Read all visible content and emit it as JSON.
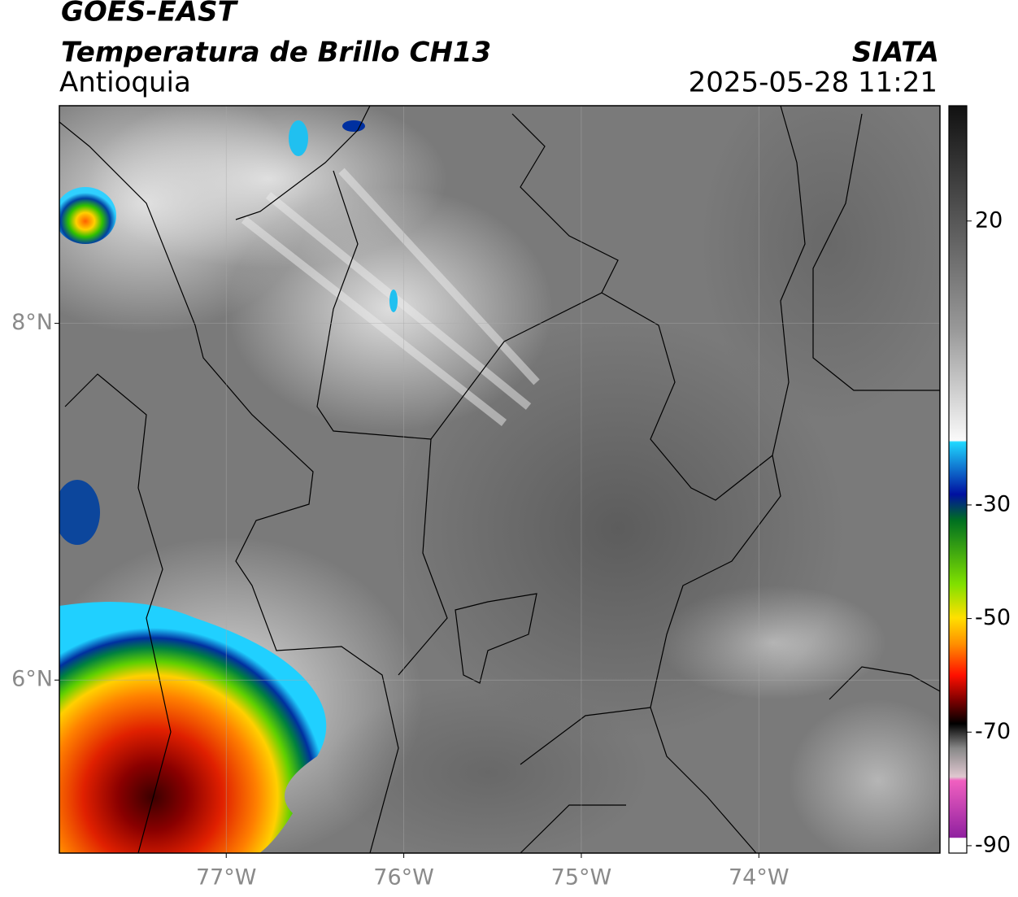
{
  "header": {
    "title": "GOES-EAST",
    "subtitle": "Temperatura de Brillo CH13",
    "region": "Antioquia",
    "source": "SIATA",
    "datetime": "2025-05-28 11:21"
  },
  "map": {
    "xlim": [
      -77.94,
      -72.98
    ],
    "ylim": [
      5.03,
      9.22
    ],
    "xticks": [
      {
        "value": -77,
        "label": "77°W"
      },
      {
        "value": -76,
        "label": "76°W"
      },
      {
        "value": -75,
        "label": "75°W"
      },
      {
        "value": -74,
        "label": "74°W"
      }
    ],
    "yticks": [
      {
        "value": 8,
        "label": "8°N"
      },
      {
        "value": 6,
        "label": "6°N"
      }
    ]
  },
  "colorbar": {
    "lim": [
      -91.3,
      40.3
    ],
    "ticks": [
      20,
      -30,
      -50,
      -70,
      -90
    ]
  }
}
